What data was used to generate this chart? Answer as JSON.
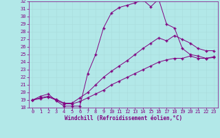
{
  "xlabel": "Windchill (Refroidissement éolien,°C)",
  "background_color": "#b2e8e8",
  "grid_color": "#aadddd",
  "line_color": "#800080",
  "xlim": [
    -0.5,
    23.5
  ],
  "ylim": [
    18,
    32
  ],
  "xticks": [
    0,
    1,
    2,
    3,
    4,
    5,
    6,
    7,
    8,
    9,
    10,
    11,
    12,
    13,
    14,
    15,
    16,
    17,
    18,
    19,
    20,
    21,
    22,
    23
  ],
  "yticks": [
    18,
    19,
    20,
    21,
    22,
    23,
    24,
    25,
    26,
    27,
    28,
    29,
    30,
    31,
    32
  ],
  "line1_x": [
    0,
    1,
    2,
    3,
    4,
    5,
    6,
    7,
    8,
    9,
    10,
    11,
    12,
    13,
    14,
    15,
    16,
    17,
    18,
    19,
    20,
    21,
    22,
    23
  ],
  "line1_y": [
    19,
    19.5,
    19.8,
    18.9,
    18.2,
    18.2,
    18.2,
    22.5,
    25.0,
    28.5,
    30.5,
    31.2,
    31.5,
    31.8,
    32.2,
    31.3,
    32.3,
    29.0,
    28.5,
    25.8,
    25.0,
    24.8,
    24.5,
    24.6
  ],
  "line2_x": [
    0,
    1,
    2,
    3,
    4,
    5,
    6,
    7,
    8,
    9,
    10,
    11,
    12,
    13,
    14,
    15,
    16,
    17,
    18,
    19,
    20,
    21,
    22,
    23
  ],
  "line2_y": [
    19,
    19.3,
    19.5,
    19.1,
    18.6,
    18.6,
    19.3,
    20.0,
    21.0,
    22.0,
    22.8,
    23.5,
    24.2,
    25.0,
    25.8,
    26.5,
    27.2,
    26.8,
    27.5,
    27.0,
    26.5,
    25.8,
    25.5,
    25.5
  ],
  "line3_x": [
    0,
    1,
    2,
    3,
    4,
    5,
    6,
    7,
    8,
    9,
    10,
    11,
    12,
    13,
    14,
    15,
    16,
    17,
    18,
    19,
    20,
    21,
    22,
    23
  ],
  "line3_y": [
    19,
    19.2,
    19.4,
    19.0,
    18.5,
    18.5,
    18.8,
    19.3,
    19.8,
    20.3,
    21.0,
    21.5,
    22.0,
    22.5,
    23.0,
    23.5,
    24.0,
    24.3,
    24.5,
    24.5,
    24.8,
    24.5,
    24.5,
    24.7
  ],
  "marker": "+",
  "markersize": 2.5,
  "linewidth": 0.7,
  "tick_fontsize": 5.0,
  "xlabel_fontsize": 5.5
}
